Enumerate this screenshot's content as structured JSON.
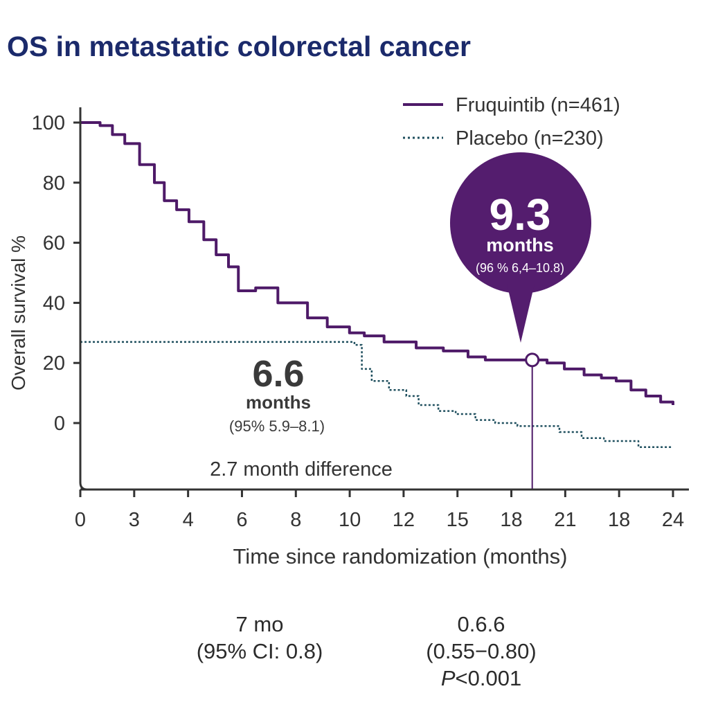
{
  "title": "OS in metastatic colorectal cancer",
  "chart_data": {
    "type": "line",
    "ylabel": "Overall survival %",
    "xlabel": "Time since randomization (months)",
    "y_ticks": [
      "100",
      "80",
      "60",
      "40",
      "20",
      "0"
    ],
    "x_ticks": [
      "0",
      "3",
      "4",
      "6",
      "8",
      "10",
      "12",
      "15",
      "18",
      "21",
      "18",
      "24"
    ],
    "ylim": [
      -22,
      102
    ],
    "xlim": [
      0,
      24
    ],
    "grid": false,
    "legend_position": "top-right",
    "series": [
      {
        "name": "Fruquintib (n=461)",
        "color": "#4e1a68",
        "style": "solid",
        "x": [
          0,
          0.8,
          1.3,
          1.8,
          2.4,
          3.0,
          3.4,
          3.9,
          4.4,
          5.0,
          5.5,
          6.0,
          6.4,
          7.1,
          8.0,
          9.2,
          10.0,
          10.9,
          11.5,
          12.3,
          13.6,
          14.7,
          15.7,
          16.4,
          17.1,
          17.7,
          18.3,
          18.9,
          19.6,
          20.4,
          21.1,
          21.7,
          22.3,
          22.9,
          23.5,
          24.0
        ],
        "y": [
          100,
          99,
          96,
          93,
          86,
          80,
          74,
          71,
          67,
          61,
          56,
          52,
          44,
          45,
          40,
          35,
          32,
          30,
          29,
          27,
          25,
          24,
          22,
          21,
          21,
          21,
          21,
          20,
          18,
          16,
          15,
          14,
          11,
          9,
          7,
          6
        ]
      },
      {
        "name": "Placebo (n=230)",
        "color": "#1f4f5e",
        "style": "dotted",
        "x": [
          0,
          3,
          6,
          9,
          10.5,
          11.1,
          11.4,
          11.8,
          12.5,
          13.2,
          13.7,
          14.5,
          15.2,
          16.0,
          16.8,
          17.7,
          18.6,
          19.4,
          20.3,
          21.2,
          22.0,
          22.6,
          23.2,
          24.0
        ],
        "y": [
          27,
          27,
          27,
          27,
          27,
          26,
          18,
          14,
          11,
          9,
          6,
          4,
          3,
          1,
          0,
          -1,
          -1,
          -3,
          -5,
          -6,
          -6,
          -8,
          -8,
          -8
        ]
      }
    ],
    "annotations": {
      "fruq_value": "9.3",
      "fruq_unit": "months",
      "fruq_ci": "(96 % 6,4–10.8)",
      "fruq_marker_x": 18.3,
      "fruq_marker_y": 21,
      "placebo_value": "6.6",
      "placebo_unit": "months",
      "placebo_ci": "(95% 5.9–8.1)",
      "difference": "2.7 month difference"
    }
  },
  "footer": {
    "left_value": "7 mo",
    "left_ci": "(95% CI: 0.8)",
    "right_value": "0.6.6",
    "right_ci": "(0.55−0.80)",
    "p_italic": "P",
    "p_rest": "<0.001"
  }
}
